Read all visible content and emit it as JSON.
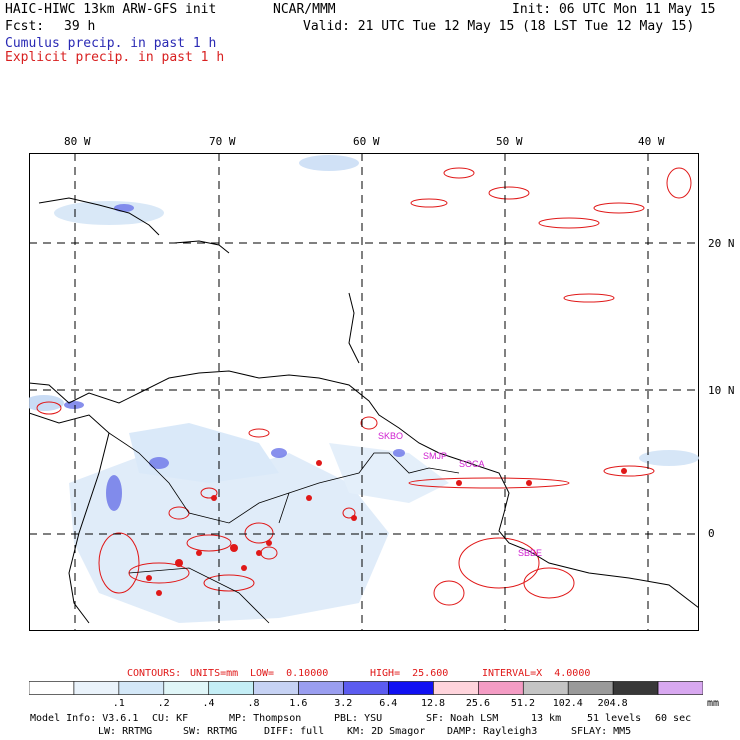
{
  "header": {
    "model_title": "HAIC-HIWC 13km ARW-GFS init",
    "org": "NCAR/MMM",
    "init": "Init: 06 UTC Mon 11 May 15",
    "fcst_label": "Fcst:",
    "fcst_value": "39 h",
    "valid": "Valid: 21 UTC Tue 12 May 15 (18 LST Tue 12 May 15)",
    "field1": "Cumulus precip. in past 1 h",
    "field2": "Explicit precip. in past 1 h"
  },
  "map": {
    "lon_labels": [
      "80 W",
      "70 W",
      "60 W",
      "50 W",
      "40 W"
    ],
    "lat_labels": [
      "20 N",
      "10 N",
      "0"
    ],
    "station_labels": [
      "SKBO",
      "SMJP",
      "SOCA",
      "SBBE"
    ],
    "colors": {
      "coast": "#000000",
      "explicit": "#e01818",
      "station": "#d020d0",
      "grid": "#000000"
    }
  },
  "contours": {
    "label": "CONTOURS:",
    "units": "UNITS=mm",
    "low": "LOW=  0.10000",
    "high": "HIGH=  25.600",
    "interval": "INTERVAL=X  4.0000"
  },
  "colorbar": {
    "labels": [
      ".1",
      ".2",
      ".4",
      ".8",
      "1.6",
      "3.2",
      "6.4",
      "12.8",
      "25.6",
      "51.2",
      "102.4",
      "204.8"
    ],
    "unit": "mm",
    "colors": [
      "#ffffff",
      "#eaf3fb",
      "#d4e8f8",
      "#e0f6f8",
      "#c4eef6",
      "#c6d2f4",
      "#9a9ef0",
      "#5c5cf0",
      "#1010f2",
      "#ffd4dc",
      "#f49cc4",
      "#c4c4c4",
      "#9a9a9a",
      "#383838",
      "#d8a8f0"
    ]
  },
  "model_info": {
    "line1": [
      "Model Info: V3.6.1",
      "CU: KF",
      "MP: Thompson",
      "PBL: YSU",
      "SF: Noah LSM",
      "13 km",
      "51 levels",
      "60 sec"
    ],
    "line2": [
      "LW: RRTMG",
      "SW: RRTMG",
      "DIFF: full",
      "KM: 2D Smagor",
      "DAMP: Rayleigh3",
      "SFLAY: MM5"
    ]
  }
}
